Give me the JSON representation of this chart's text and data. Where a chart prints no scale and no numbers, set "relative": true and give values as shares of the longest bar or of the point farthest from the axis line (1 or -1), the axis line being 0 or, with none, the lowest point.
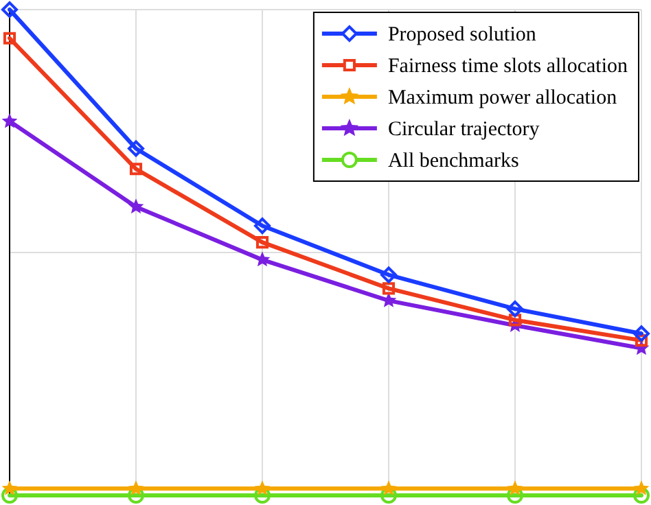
{
  "chart_data": {
    "type": "line",
    "relative": true,
    "categories": [
      null,
      null,
      null,
      null,
      null,
      null
    ],
    "grid": true,
    "legend": "top right",
    "series": [
      {
        "name": "Proposed solution",
        "color": "#1a3cff",
        "marker": "diamond",
        "values": [
          1,
          0.714,
          0.555,
          0.454,
          0.384,
          0.333
        ]
      },
      {
        "name": "Fairness time slots allocation",
        "color": "#ee3b1c",
        "marker": "square",
        "values": [
          0.941,
          0.672,
          0.521,
          0.426,
          0.361,
          0.319
        ]
      },
      {
        "name": "Maximum power allocation",
        "color": "#f5a800",
        "marker": "star",
        "values": [
          0.014,
          0.014,
          0.014,
          0.014,
          0.014,
          0.014
        ]
      },
      {
        "name": "Circular trajectory",
        "color": "#7a1fe0",
        "marker": "star",
        "values": [
          0.77,
          0.594,
          0.485,
          0.401,
          0.35,
          0.303
        ]
      },
      {
        "name": "All benchmarks",
        "color": "#66dd22",
        "marker": "circle",
        "values": [
          0,
          0,
          0,
          0,
          0,
          0
        ]
      }
    ]
  }
}
